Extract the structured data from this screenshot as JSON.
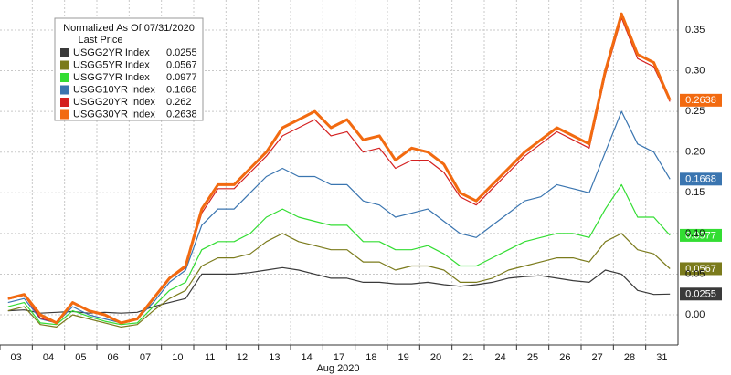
{
  "chart_data": {
    "type": "line",
    "legend_title": "Normalized As Of 07/31/2020",
    "legend_subtitle": "Last Price",
    "x_label": "Aug 2020",
    "categories": [
      "03",
      null,
      "04",
      null,
      "05",
      null,
      "06",
      null,
      "07",
      null,
      "10",
      null,
      "11",
      null,
      "12",
      null,
      "13",
      null,
      "14",
      null,
      "17",
      null,
      "18",
      null,
      "19",
      null,
      "20",
      null,
      "21",
      null,
      "24",
      null,
      "25",
      null,
      "26",
      null,
      "27",
      null,
      "28",
      null,
      "31",
      null
    ],
    "ylim": [
      -0.037,
      0.387
    ],
    "yticks": [
      {
        "value": 0,
        "label": "0.00"
      },
      {
        "value": 0.05,
        "label": "0.05"
      },
      {
        "value": 0.1,
        "label": "0.10"
      },
      {
        "value": 0.15,
        "label": "0.15"
      },
      {
        "value": 0.2,
        "label": "0.20"
      },
      {
        "value": 0.25,
        "label": "0.25"
      },
      {
        "value": 0.3,
        "label": "0.30"
      },
      {
        "value": 0.35,
        "label": "0.35"
      }
    ],
    "grid": true,
    "series": [
      {
        "name": "USGG2YR Index",
        "last_price": 0.0255,
        "color": "#3a3a3a",
        "box": true,
        "values": [
          0.005,
          0.006,
          0.002,
          0.003,
          0.004,
          0.002,
          0.003,
          0.002,
          0.003,
          0.01,
          0.015,
          0.02,
          0.05,
          0.05,
          0.05,
          0.052,
          0.055,
          0.058,
          0.055,
          0.05,
          0.045,
          0.045,
          0.04,
          0.04,
          0.038,
          0.038,
          0.04,
          0.037,
          0.035,
          0.037,
          0.04,
          0.045,
          0.047,
          0.048,
          0.045,
          0.042,
          0.04,
          0.055,
          0.05,
          0.03,
          0.025,
          0.0255
        ]
      },
      {
        "name": "USGG5YR Index",
        "last_price": 0.0567,
        "color": "#7b7b1c",
        "box": true,
        "values": [
          0.005,
          0.01,
          -0.012,
          -0.015,
          0.0,
          -0.005,
          -0.01,
          -0.015,
          -0.012,
          0.005,
          0.02,
          0.03,
          0.06,
          0.07,
          0.07,
          0.075,
          0.09,
          0.1,
          0.09,
          0.085,
          0.08,
          0.08,
          0.065,
          0.065,
          0.055,
          0.06,
          0.06,
          0.055,
          0.04,
          0.04,
          0.045,
          0.055,
          0.06,
          0.065,
          0.07,
          0.07,
          0.065,
          0.09,
          0.1,
          0.08,
          0.075,
          0.0567
        ]
      },
      {
        "name": "USGG7YR Index",
        "last_price": 0.0977,
        "color": "#33dd33",
        "box": true,
        "values": [
          0.01,
          0.015,
          -0.01,
          -0.012,
          0.005,
          -0.002,
          -0.008,
          -0.012,
          -0.01,
          0.01,
          0.03,
          0.04,
          0.08,
          0.09,
          0.09,
          0.1,
          0.12,
          0.13,
          0.12,
          0.115,
          0.11,
          0.11,
          0.09,
          0.09,
          0.08,
          0.08,
          0.085,
          0.075,
          0.06,
          0.06,
          0.07,
          0.08,
          0.09,
          0.095,
          0.1,
          0.1,
          0.095,
          0.13,
          0.16,
          0.12,
          0.12,
          0.0977
        ]
      },
      {
        "name": "USGG10YR Index",
        "last_price": 0.1668,
        "color": "#3a75b0",
        "box": true,
        "values": [
          0.015,
          0.02,
          -0.005,
          -0.01,
          0.01,
          0.0,
          -0.005,
          -0.01,
          -0.005,
          0.015,
          0.04,
          0.055,
          0.11,
          0.13,
          0.13,
          0.15,
          0.17,
          0.18,
          0.17,
          0.17,
          0.16,
          0.16,
          0.14,
          0.135,
          0.12,
          0.125,
          0.13,
          0.115,
          0.1,
          0.095,
          0.11,
          0.125,
          0.14,
          0.145,
          0.16,
          0.155,
          0.15,
          0.2,
          0.25,
          0.21,
          0.2,
          0.1668
        ]
      },
      {
        "name": "USGG20YR Index",
        "last_price": 0.262,
        "color": "#d42020",
        "box": false,
        "values": [
          0.019,
          0.024,
          -0.004,
          -0.01,
          0.014,
          0.004,
          -0.001,
          -0.01,
          -0.005,
          0.019,
          0.044,
          0.058,
          0.125,
          0.155,
          0.155,
          0.175,
          0.195,
          0.22,
          0.23,
          0.24,
          0.22,
          0.225,
          0.2,
          0.205,
          0.18,
          0.19,
          0.19,
          0.175,
          0.145,
          0.135,
          0.155,
          0.175,
          0.195,
          0.21,
          0.225,
          0.215,
          0.205,
          0.295,
          0.365,
          0.315,
          0.305,
          0.262
        ]
      },
      {
        "name": "USGG30YR Index",
        "last_price": 0.2638,
        "color": "#f26a10",
        "box": true,
        "values": [
          0.02,
          0.025,
          0.0,
          -0.01,
          0.015,
          0.005,
          0.0,
          -0.01,
          -0.005,
          0.02,
          0.045,
          0.06,
          0.13,
          0.16,
          0.16,
          0.18,
          0.2,
          0.23,
          0.24,
          0.25,
          0.23,
          0.24,
          0.215,
          0.22,
          0.19,
          0.205,
          0.2,
          0.185,
          0.15,
          0.14,
          0.16,
          0.18,
          0.2,
          0.215,
          0.23,
          0.22,
          0.21,
          0.3,
          0.37,
          0.32,
          0.31,
          0.2638
        ]
      }
    ]
  }
}
